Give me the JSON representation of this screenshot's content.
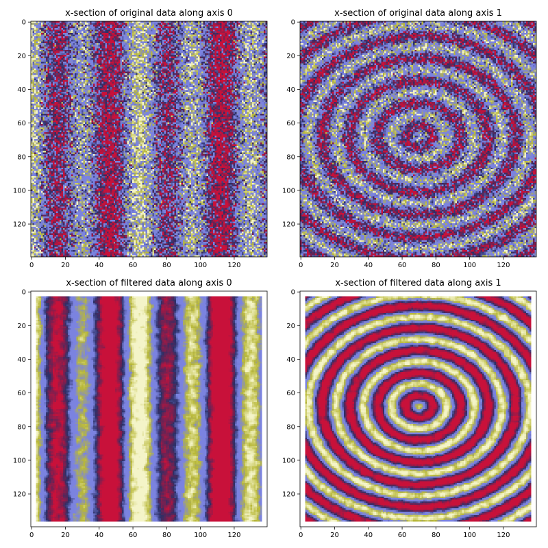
{
  "chart_data": [
    {
      "type": "heatmap",
      "title": "x-section of original data along axis 0",
      "pattern": "vertical_stripes",
      "filtered": false,
      "xlim": [
        0,
        140
      ],
      "ylim": [
        140,
        0
      ],
      "xticks": [
        0,
        20,
        40,
        60,
        80,
        100,
        120
      ],
      "yticks": [
        0,
        20,
        40,
        60,
        80,
        100,
        120
      ],
      "colormap": [
        "#2b2f66",
        "#7b83e0",
        "#b8b838",
        "#f4f4c8",
        "#c8113a"
      ]
    },
    {
      "type": "heatmap",
      "title": "x-section of original data along axis 1",
      "pattern": "concentric_rings",
      "filtered": false,
      "xlim": [
        0,
        140
      ],
      "ylim": [
        140,
        0
      ],
      "xticks": [
        0,
        20,
        40,
        60,
        80,
        100,
        120
      ],
      "yticks": [
        0,
        20,
        40,
        60,
        80,
        100,
        120
      ],
      "colormap": [
        "#2b2f66",
        "#7b83e0",
        "#b8b838",
        "#f4f4c8",
        "#c8113a"
      ]
    },
    {
      "type": "heatmap",
      "title": "x-section of filtered data along axis 0",
      "pattern": "vertical_stripes",
      "filtered": true,
      "xlim": [
        0,
        140
      ],
      "ylim": [
        140,
        0
      ],
      "xticks": [
        0,
        20,
        40,
        60,
        80,
        100,
        120
      ],
      "yticks": [
        0,
        20,
        40,
        60,
        80,
        100,
        120
      ],
      "colormap": [
        "#2b2f66",
        "#7b83e0",
        "#b8b838",
        "#f4f4c8",
        "#c8113a"
      ]
    },
    {
      "type": "heatmap",
      "title": "x-section of filtered data along axis 1",
      "pattern": "concentric_rings",
      "filtered": true,
      "xlim": [
        0,
        140
      ],
      "ylim": [
        140,
        0
      ],
      "xticks": [
        0,
        20,
        40,
        60,
        80,
        100,
        120
      ],
      "yticks": [
        0,
        20,
        40,
        60,
        80,
        100,
        120
      ],
      "colormap": [
        "#2b2f66",
        "#7b83e0",
        "#b8b838",
        "#f4f4c8",
        "#c8113a"
      ]
    }
  ]
}
